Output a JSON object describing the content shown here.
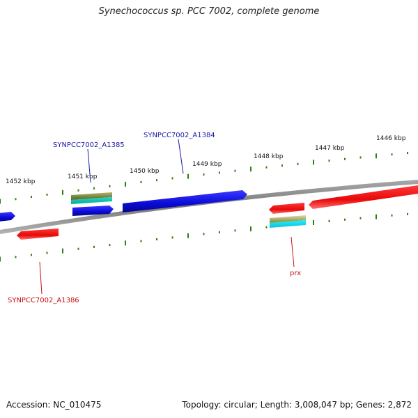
{
  "title": "Synechococcus sp. PCC 7002, complete genome",
  "footer": {
    "accession": "Accession: NC_010475",
    "summary": "Topology: circular; Length: 3,008,047 bp; Genes: 2,872"
  },
  "colors": {
    "forward_gene": "#1010e0",
    "reverse_gene": "#e81010",
    "backbone": "#8a8a8a",
    "ticks": "#2f7d10",
    "label_forward": "#1a1aa8",
    "label_reverse": "#cc1010"
  },
  "kbp_ticks": [
    "1452 kbp",
    "1451 kbp",
    "1450 kbp",
    "1449 kbp",
    "1448 kbp",
    "1447 kbp",
    "1446 kbp"
  ],
  "genes": [
    {
      "name": "SYNPCC7002_A1385",
      "strand": "forward"
    },
    {
      "name": "SYNPCC7002_A1384",
      "strand": "forward"
    },
    {
      "name": "SYNPCC7002_A1386",
      "strand": "reverse"
    },
    {
      "name": "prx",
      "strand": "reverse"
    }
  ]
}
